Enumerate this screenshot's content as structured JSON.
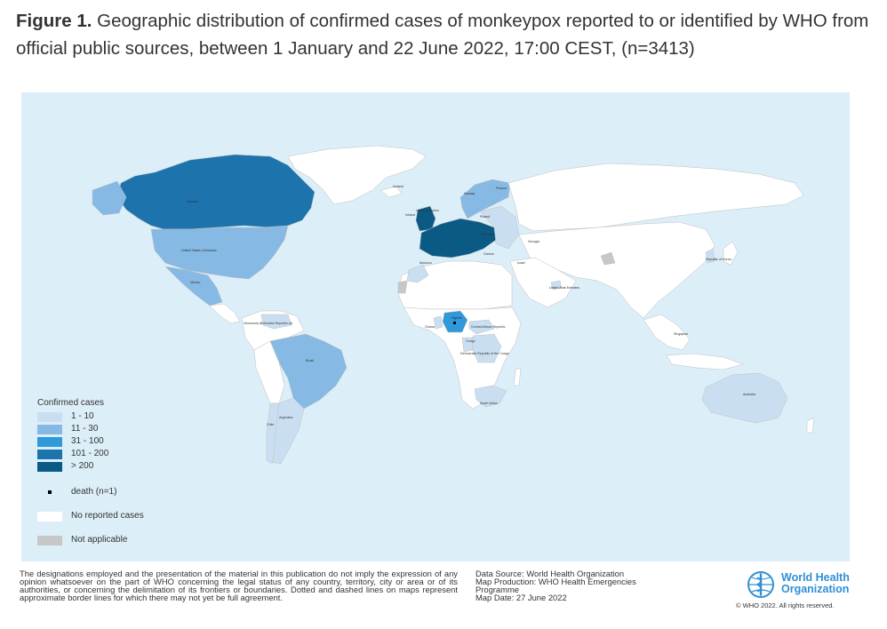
{
  "title": {
    "bold": "Figure 1.",
    "text": " Geographic distribution of confirmed cases of monkeypox reported to or identified by WHO from official public sources, between 1 January and 22 June 2022, 17:00 CEST, (n=3413)"
  },
  "colors": {
    "ocean": "#dceef8",
    "no_cases": "#ffffff",
    "not_applicable": "#c7c7c7",
    "c1_10": "#c9dff1",
    "c11_30": "#86b9e3",
    "c31_100": "#2f99d9",
    "c101_200": "#1d74ad",
    "c200_plus": "#0b5a86",
    "border": "#bfbfbf"
  },
  "country_labels": {
    "canada": "Canada",
    "usa": "United States of America",
    "mexico": "Mexico",
    "venezuela": "Venezuela (Bolivarian Republic of)",
    "brazil": "Brazil",
    "argentina": "Argentina",
    "chile": "Chile",
    "iceland": "Iceland",
    "uk": "United Kingdom",
    "ireland": "Ireland",
    "norway": "Norway",
    "finland": "Finland",
    "poland": "Poland",
    "romania": "Romania",
    "georgia": "Georgia",
    "greece": "Greece",
    "morocco": "Morocco",
    "israel": "Israel",
    "uae": "United Arab Emirates",
    "nigeria": "Nigeria",
    "ghana": "Ghana",
    "car": "Central African Republic",
    "congo": "Congo",
    "drc": "Democratic Republic of the Congo",
    "south_africa": "South Africa",
    "korea": "Republic of Korea",
    "singapore": "Singapore",
    "australia": "Australia"
  },
  "legend": {
    "title": "Confirmed cases",
    "items": [
      {
        "label": "1 - 10",
        "color": "#c9dff1"
      },
      {
        "label": "11 - 30",
        "color": "#86b9e3"
      },
      {
        "label": "31 - 100",
        "color": "#2f99d9"
      },
      {
        "label": "101 - 200",
        "color": "#1d74ad"
      },
      {
        "label": "> 200",
        "color": "#0b5a86"
      }
    ],
    "death": "death (n=1)",
    "no_cases": "No reported cases",
    "not_applicable": "Not applicable"
  },
  "footer": {
    "disclaimer": "The designations employed and the presentation of the material in this publication do not imply the expression of any opinion whatsoever on the part of WHO concerning the legal status of any country, territory, city or area or of its authorities, or concerning the delimitation of its frontiers or boundaries. Dotted and dashed lines on maps represent approximate border lines for which there may not yet be full agreement.",
    "source": "Data Source: World Health Organization",
    "production": "Map Production: WHO Health Emergencies Programme",
    "date": "Map Date: 27 June 2022",
    "org_line1": "World Health",
    "org_line2": "Organization",
    "copyright": "© WHO 2022. All rights reserved."
  }
}
